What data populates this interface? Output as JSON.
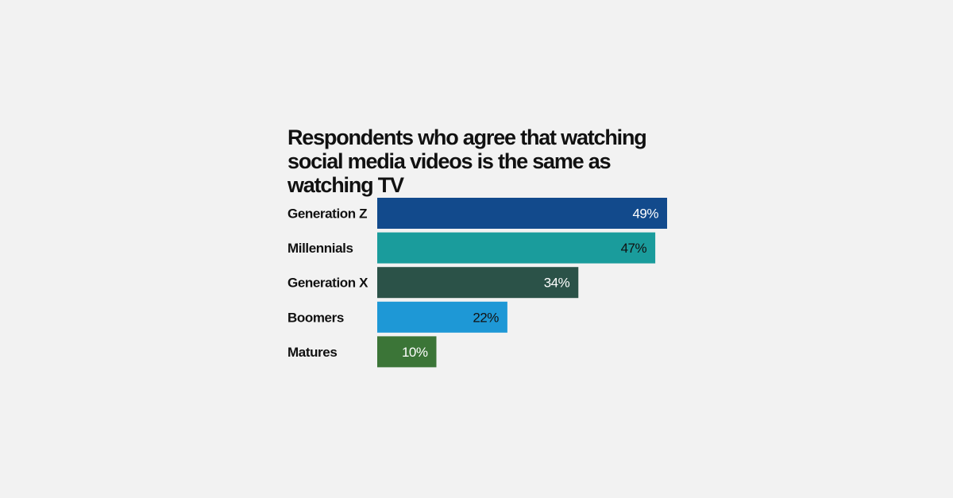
{
  "chart_data": {
    "type": "bar",
    "orientation": "horizontal",
    "title": "Respondents who agree that watching social media videos is the same as watching TV",
    "categories": [
      "Generation Z",
      "Millennials",
      "Generation X",
      "Boomers",
      "Matures"
    ],
    "values": [
      49,
      47,
      34,
      22,
      10
    ],
    "value_labels": [
      "49%",
      "47%",
      "34%",
      "22%",
      "10%"
    ],
    "unit": "%",
    "colors": [
      "#124a8c",
      "#1a9c9c",
      "#2b5248",
      "#1e98d6",
      "#3b7537"
    ],
    "label_colors": [
      "#ffffff",
      "#111111",
      "#ffffff",
      "#111111",
      "#ffffff"
    ],
    "xlim": [
      0,
      49
    ],
    "grid": false,
    "legend": "none"
  }
}
